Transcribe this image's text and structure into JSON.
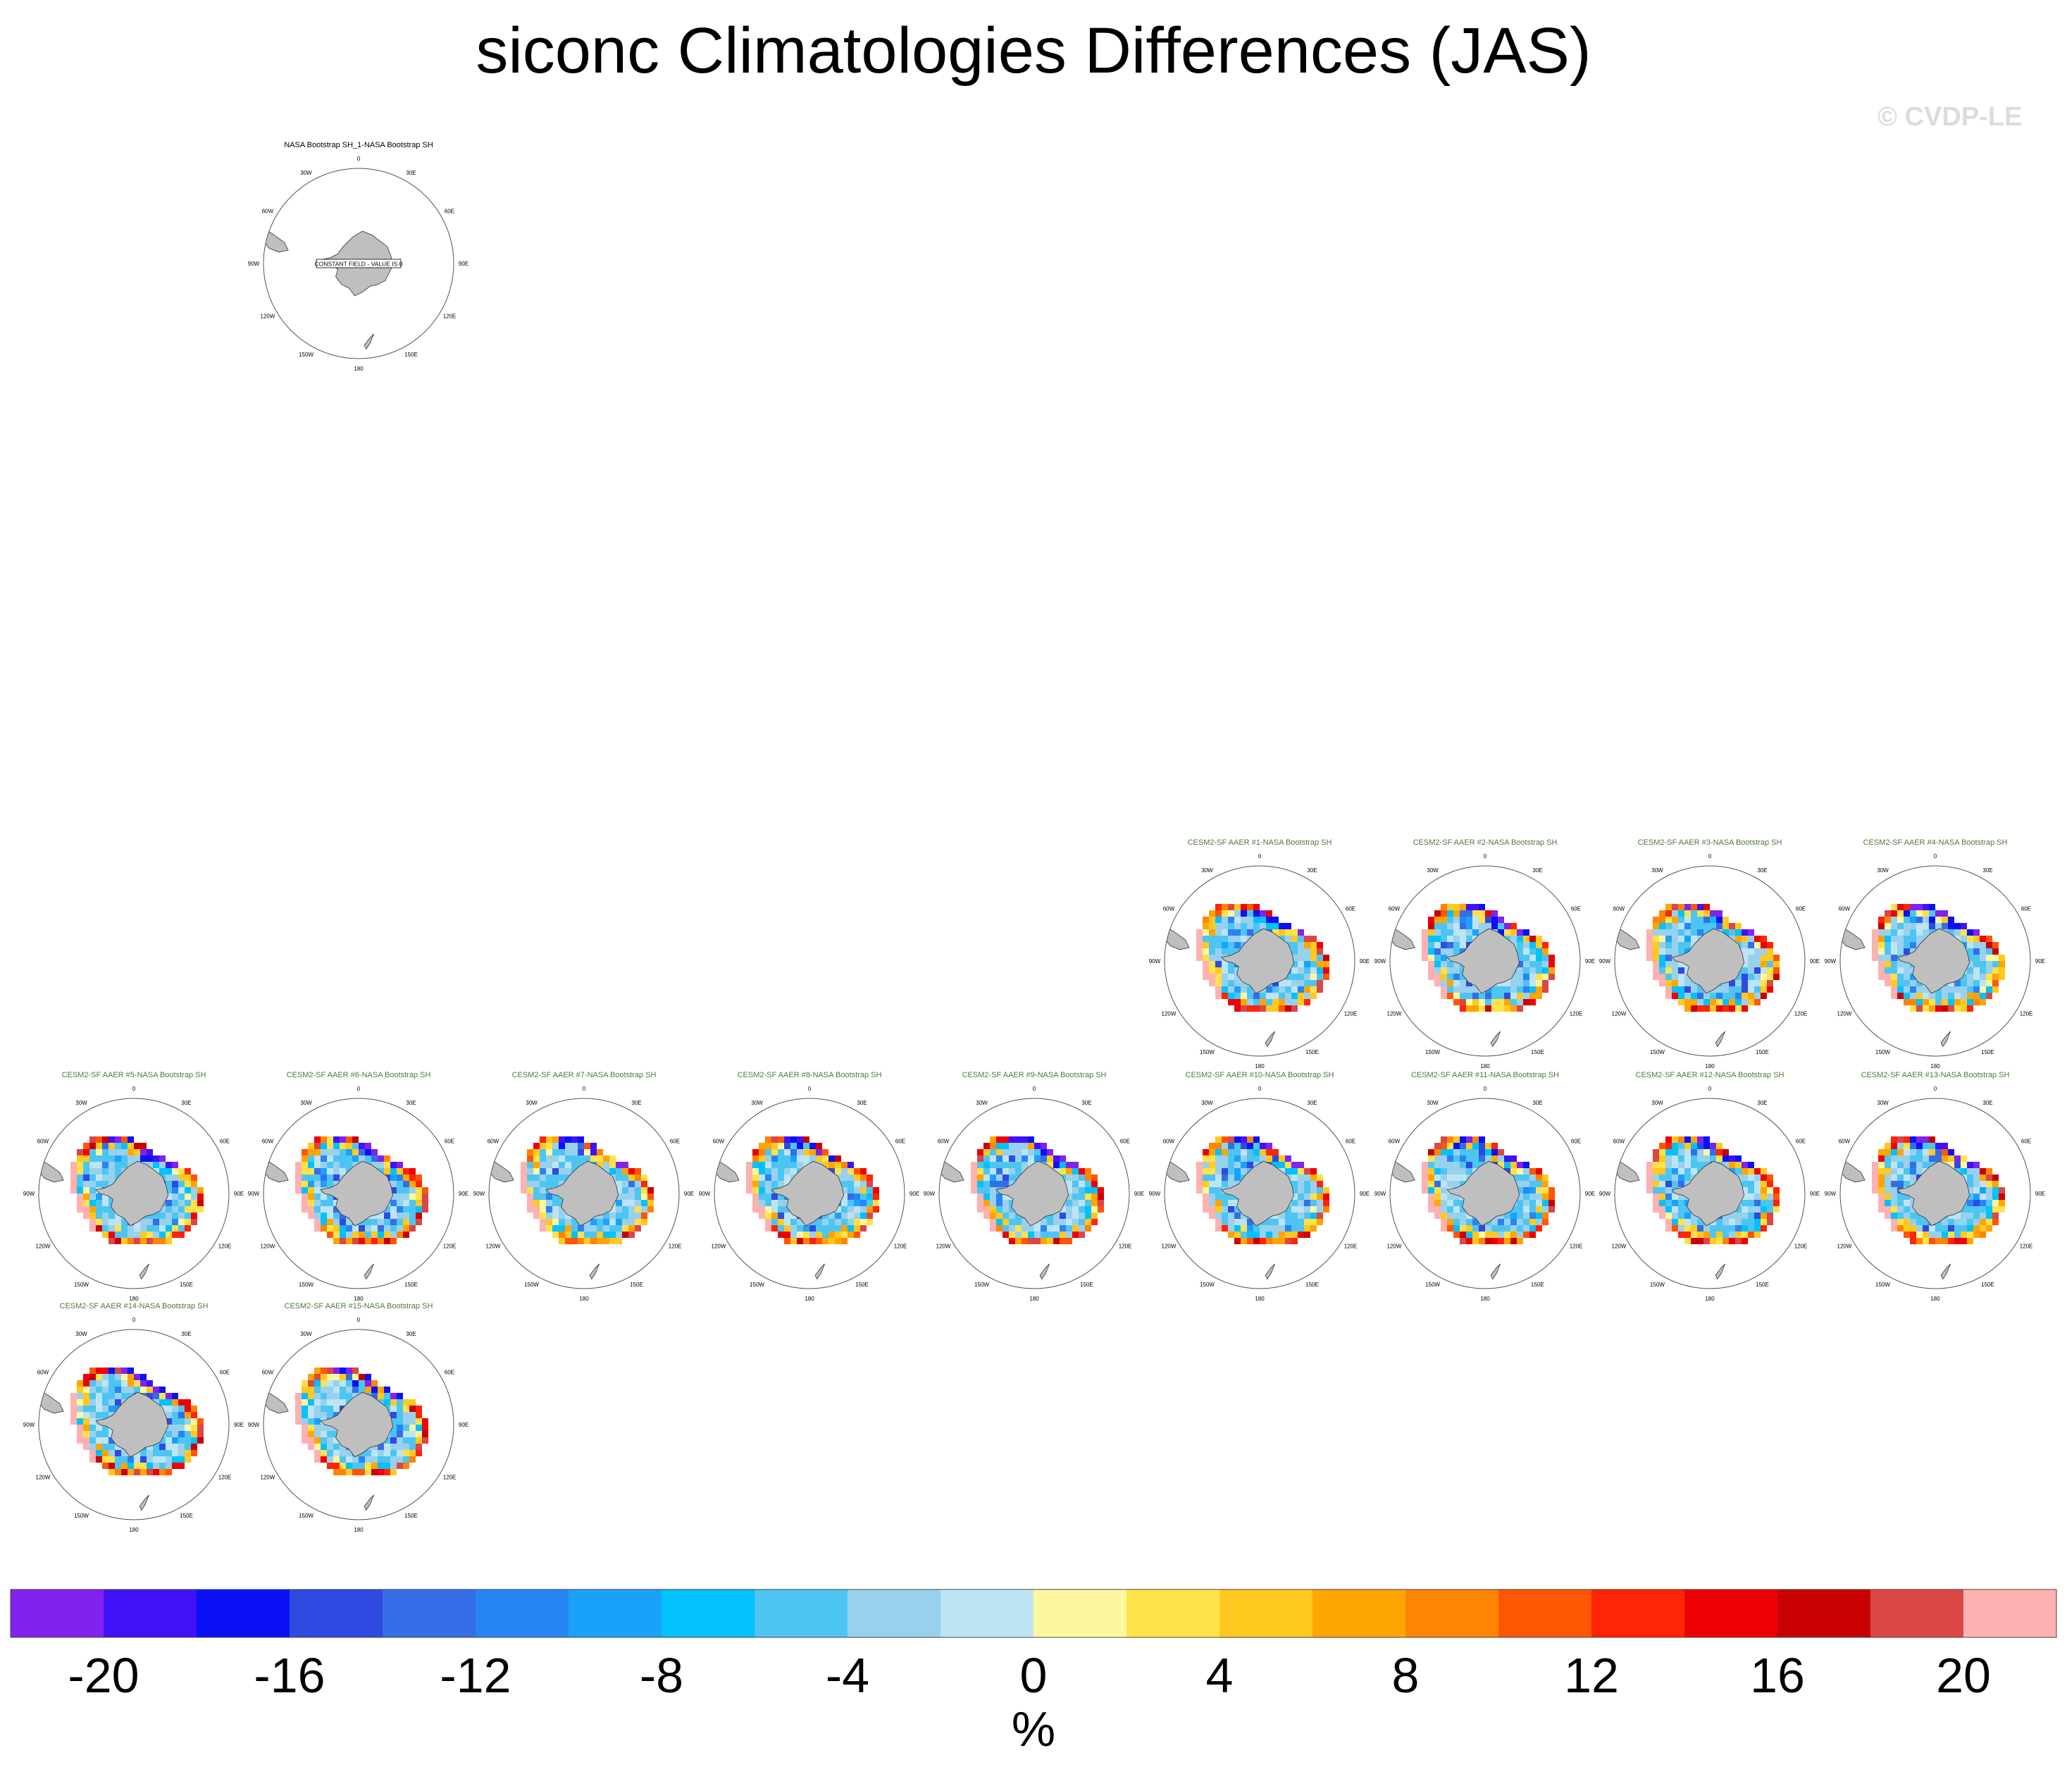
{
  "title": "siconc Climatologies Differences (JAS)",
  "watermark": "© CVDP-LE",
  "chart_data": {
    "type": "heatmap",
    "projection": "south-polar-stereographic",
    "colorbar": {
      "levels": [
        -22,
        -20,
        -18,
        -16,
        -14,
        -12,
        -10,
        -8,
        -6,
        -4,
        -2,
        0,
        2,
        4,
        6,
        8,
        10,
        12,
        14,
        16,
        18,
        20,
        22
      ],
      "colors": [
        "#8122ee",
        "#4111f7",
        "#0c10f6",
        "#2e4ae1",
        "#346ee6",
        "#2784f5",
        "#1aa2fb",
        "#02c1fd",
        "#4dc5f2",
        "#98d1ed",
        "#bde4f3",
        "#fdf8a0",
        "#ffe24a",
        "#ffc920",
        "#ffa502",
        "#ff8404",
        "#ff5604",
        "#ff2307",
        "#ee0004",
        "#c80000",
        "#da4747",
        "#feb1b1"
      ],
      "tick_labels": [
        "-20",
        "-16",
        "-12",
        "-8",
        "-4",
        "0",
        "4",
        "8",
        "12",
        "16",
        "20"
      ],
      "label": "%"
    },
    "lon_labels": [
      "0",
      "30E",
      "60E",
      "90E",
      "120E",
      "150E",
      "180",
      "150W",
      "120W",
      "90W",
      "60W",
      "30W"
    ],
    "panels": [
      {
        "title": "NASA Bootstrap SH_1-NASA Bootstrap SH",
        "note": "CONSTANT FIELD - VALUE IS 0",
        "empty": true
      },
      {
        "title": "CESM2-SF AAER #1-NASA Bootstrap SH",
        "seed": 1
      },
      {
        "title": "CESM2-SF AAER #2-NASA Bootstrap SH",
        "seed": 2
      },
      {
        "title": "CESM2-SF AAER #3-NASA Bootstrap SH",
        "seed": 3
      },
      {
        "title": "CESM2-SF AAER #4-NASA Bootstrap SH",
        "seed": 4
      },
      {
        "title": "CESM2-SF AAER #5-NASA Bootstrap SH",
        "seed": 5
      },
      {
        "title": "CESM2-SF AAER #6-NASA Bootstrap SH",
        "seed": 6
      },
      {
        "title": "CESM2-SF AAER #7-NASA Bootstrap SH",
        "seed": 7
      },
      {
        "title": "CESM2-SF AAER #8-NASA Bootstrap SH",
        "seed": 8
      },
      {
        "title": "CESM2-SF AAER #9-NASA Bootstrap SH",
        "seed": 9
      },
      {
        "title": "CESM2-SF AAER #10-NASA Bootstrap SH",
        "seed": 10
      },
      {
        "title": "CESM2-SF AAER #11-NASA Bootstrap SH",
        "seed": 11
      },
      {
        "title": "CESM2-SF AAER #12-NASA Bootstrap SH",
        "seed": 12
      },
      {
        "title": "CESM2-SF AAER #13-NASA Bootstrap SH",
        "seed": 13
      },
      {
        "title": "CESM2-SF AAER #14-NASA Bootstrap SH",
        "seed": 14
      },
      {
        "title": "CESM2-SF AAER #15-NASA Bootstrap SH",
        "seed": 15
      }
    ]
  }
}
